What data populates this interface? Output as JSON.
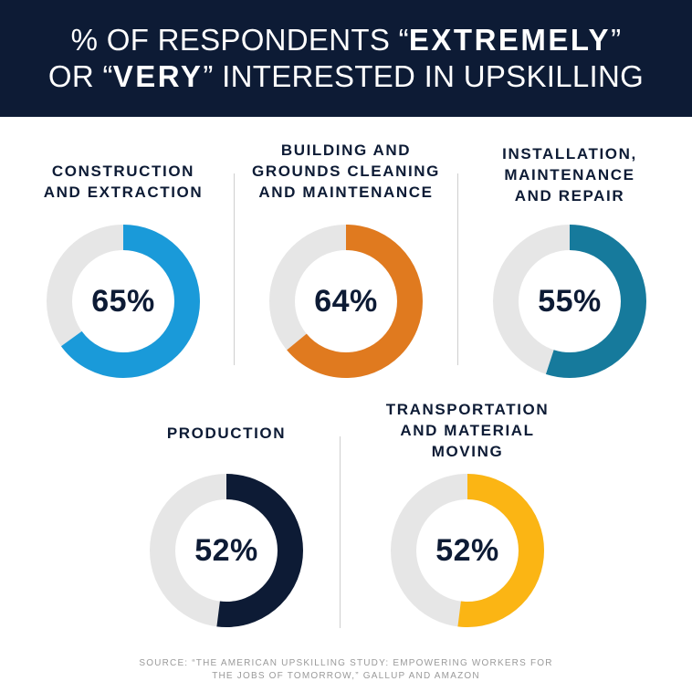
{
  "header": {
    "line1_prefix": "% OF RESPONDENTS “",
    "line1_emph": "EXTREMELY",
    "line1_suffix": "”",
    "line2_prefix": "OR “",
    "line2_emph": "VERY",
    "line2_suffix": "” INTERESTED IN UPSKILLING"
  },
  "chart_data": {
    "type": "pie",
    "style": "donut",
    "track_color": "#e6e6e6",
    "slices": [
      {
        "category": [
          "CONSTRUCTION",
          "AND EXTRACTION"
        ],
        "value": 65,
        "label": "65%",
        "color": "#1a9ad9"
      },
      {
        "category": [
          "BUILDING AND",
          "GROUNDS CLEANING",
          "AND MAINTENANCE"
        ],
        "value": 64,
        "label": "64%",
        "color": "#e07a1f"
      },
      {
        "category": [
          "INSTALLATION,",
          "MAINTENANCE",
          "AND REPAIR"
        ],
        "value": 55,
        "label": "55%",
        "color": "#167a9c"
      },
      {
        "category": [
          "PRODUCTION"
        ],
        "value": 52,
        "label": "52%",
        "color": "#0d1b35"
      },
      {
        "category": [
          "TRANSPORTATION",
          "AND MATERIAL",
          "MOVING"
        ],
        "value": 52,
        "label": "52%",
        "color": "#fbb514"
      }
    ]
  },
  "source": {
    "line1": "SOURCE: “THE AMERICAN UPSKILLING STUDY: EMPOWERING WORKERS FOR",
    "line2": "THE JOBS OF TOMORROW,” GALLUP AND AMAZON"
  }
}
